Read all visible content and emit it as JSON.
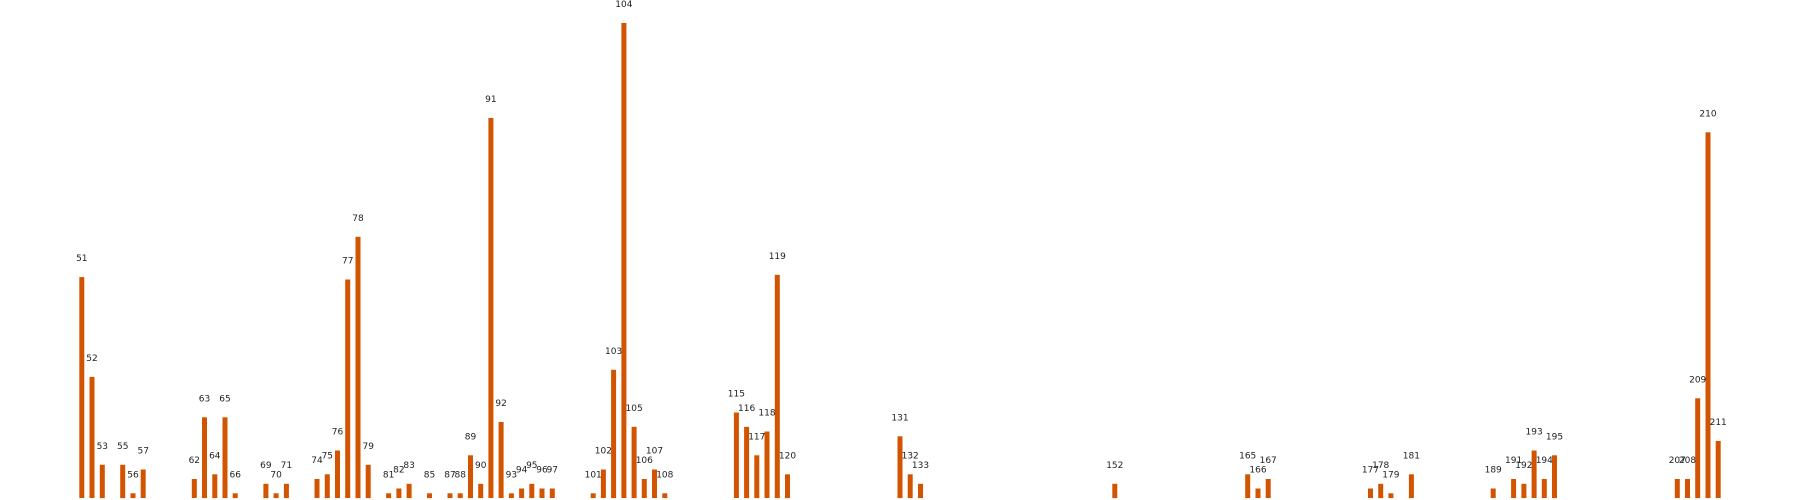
{
  "chart_data": {
    "type": "bar",
    "title": "",
    "xlabel": "",
    "ylabel": "",
    "ylim": [
      0,
      100
    ],
    "xlim": [
      43,
      219
    ],
    "grid": false,
    "bar_color": "#d35400",
    "bars": [
      {
        "x": 51,
        "value": 46.5
      },
      {
        "x": 52,
        "value": 25.5
      },
      {
        "x": 53,
        "value": 7
      },
      {
        "x": 55,
        "value": 7
      },
      {
        "x": 56,
        "value": 1
      },
      {
        "x": 57,
        "value": 6
      },
      {
        "x": 62,
        "value": 4
      },
      {
        "x": 63,
        "value": 17
      },
      {
        "x": 64,
        "value": 5
      },
      {
        "x": 65,
        "value": 17
      },
      {
        "x": 66,
        "value": 1
      },
      {
        "x": 69,
        "value": 3
      },
      {
        "x": 70,
        "value": 1
      },
      {
        "x": 71,
        "value": 3
      },
      {
        "x": 74,
        "value": 4
      },
      {
        "x": 75,
        "value": 5
      },
      {
        "x": 76,
        "value": 10
      },
      {
        "x": 77,
        "value": 46
      },
      {
        "x": 78,
        "value": 55
      },
      {
        "x": 79,
        "value": 7
      },
      {
        "x": 81,
        "value": 1
      },
      {
        "x": 82,
        "value": 2
      },
      {
        "x": 83,
        "value": 3
      },
      {
        "x": 85,
        "value": 1
      },
      {
        "x": 87,
        "value": 1
      },
      {
        "x": 88,
        "value": 1
      },
      {
        "x": 89,
        "value": 9
      },
      {
        "x": 90,
        "value": 3
      },
      {
        "x": 91,
        "value": 80
      },
      {
        "x": 92,
        "value": 16
      },
      {
        "x": 93,
        "value": 1
      },
      {
        "x": 94,
        "value": 2
      },
      {
        "x": 95,
        "value": 3
      },
      {
        "x": 96,
        "value": 2
      },
      {
        "x": 97,
        "value": 2
      },
      {
        "x": 101,
        "value": 1
      },
      {
        "x": 102,
        "value": 6
      },
      {
        "x": 103,
        "value": 27
      },
      {
        "x": 104,
        "value": 100
      },
      {
        "x": 105,
        "value": 15
      },
      {
        "x": 106,
        "value": 4
      },
      {
        "x": 107,
        "value": 6
      },
      {
        "x": 108,
        "value": 1
      },
      {
        "x": 115,
        "value": 18
      },
      {
        "x": 116,
        "value": 15
      },
      {
        "x": 117,
        "value": 9
      },
      {
        "x": 118,
        "value": 14
      },
      {
        "x": 119,
        "value": 47
      },
      {
        "x": 120,
        "value": 5
      },
      {
        "x": 131,
        "value": 13
      },
      {
        "x": 132,
        "value": 5
      },
      {
        "x": 133,
        "value": 3
      },
      {
        "x": 152,
        "value": 3
      },
      {
        "x": 165,
        "value": 5
      },
      {
        "x": 166,
        "value": 2
      },
      {
        "x": 167,
        "value": 4
      },
      {
        "x": 177,
        "value": 2
      },
      {
        "x": 178,
        "value": 3
      },
      {
        "x": 179,
        "value": 1
      },
      {
        "x": 181,
        "value": 5
      },
      {
        "x": 189,
        "value": 2
      },
      {
        "x": 191,
        "value": 4
      },
      {
        "x": 192,
        "value": 3
      },
      {
        "x": 193,
        "value": 10
      },
      {
        "x": 194,
        "value": 4
      },
      {
        "x": 195,
        "value": 9
      },
      {
        "x": 207,
        "value": 4
      },
      {
        "x": 208,
        "value": 4
      },
      {
        "x": 209,
        "value": 21
      },
      {
        "x": 210,
        "value": 77
      },
      {
        "x": 211,
        "value": 12
      }
    ]
  }
}
